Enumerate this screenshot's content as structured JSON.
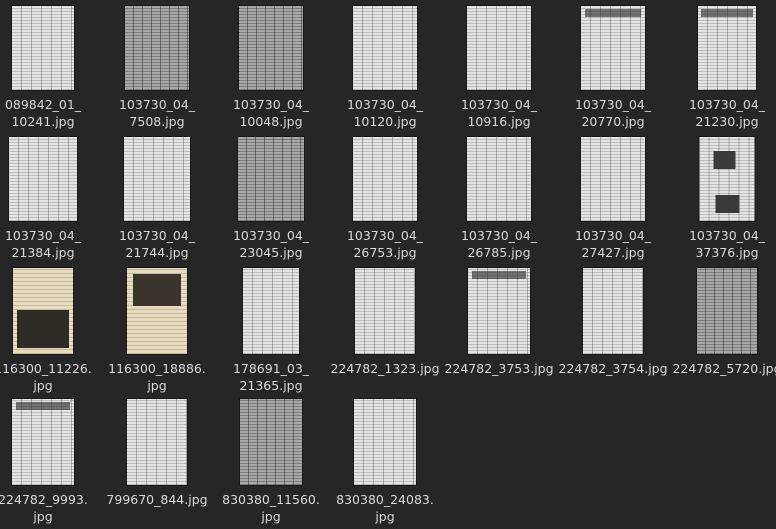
{
  "files": [
    {
      "name": "089842_01_\n10241.jpg",
      "style": "light"
    },
    {
      "name": "103730_04_\n7508.jpg",
      "style": "dark"
    },
    {
      "name": "103730_04_\n10048.jpg",
      "style": "dark"
    },
    {
      "name": "103730_04_\n10120.jpg",
      "style": "light"
    },
    {
      "name": "103730_04_\n10916.jpg",
      "style": "light"
    },
    {
      "name": "103730_04_\n20770.jpg",
      "style": "masthead"
    },
    {
      "name": "103730_04_\n21230.jpg",
      "style": "masthead"
    },
    {
      "name": "103730_04_\n21384.jpg",
      "style": "light"
    },
    {
      "name": "103730_04_\n21744.jpg",
      "style": "light"
    },
    {
      "name": "103730_04_\n23045.jpg",
      "style": "dark"
    },
    {
      "name": "103730_04_\n26753.jpg",
      "style": "light"
    },
    {
      "name": "103730_04_\n26785.jpg",
      "style": "light"
    },
    {
      "name": "103730_04_\n27427.jpg",
      "style": "light"
    },
    {
      "name": "103730_04_\n37376.jpg",
      "style": "photo"
    },
    {
      "name": "116300_11226.\njpg",
      "style": "sepia"
    },
    {
      "name": "116300_18886.\njpg",
      "style": "sepia"
    },
    {
      "name": "178691_03_\n21365.jpg",
      "style": "light"
    },
    {
      "name": "224782_1323.jpg",
      "style": "light"
    },
    {
      "name": "224782_3753.jpg",
      "style": "masthead"
    },
    {
      "name": "224782_3754.jpg",
      "style": "light"
    },
    {
      "name": "224782_5720.jpg",
      "style": "dark"
    },
    {
      "name": "224782_9993.\njpg",
      "style": "masthead"
    },
    {
      "name": "799670_844.jpg",
      "style": "light"
    },
    {
      "name": "830380_11560.\njpg",
      "style": "dark"
    },
    {
      "name": "830380_24083.\njpg",
      "style": "light"
    }
  ]
}
